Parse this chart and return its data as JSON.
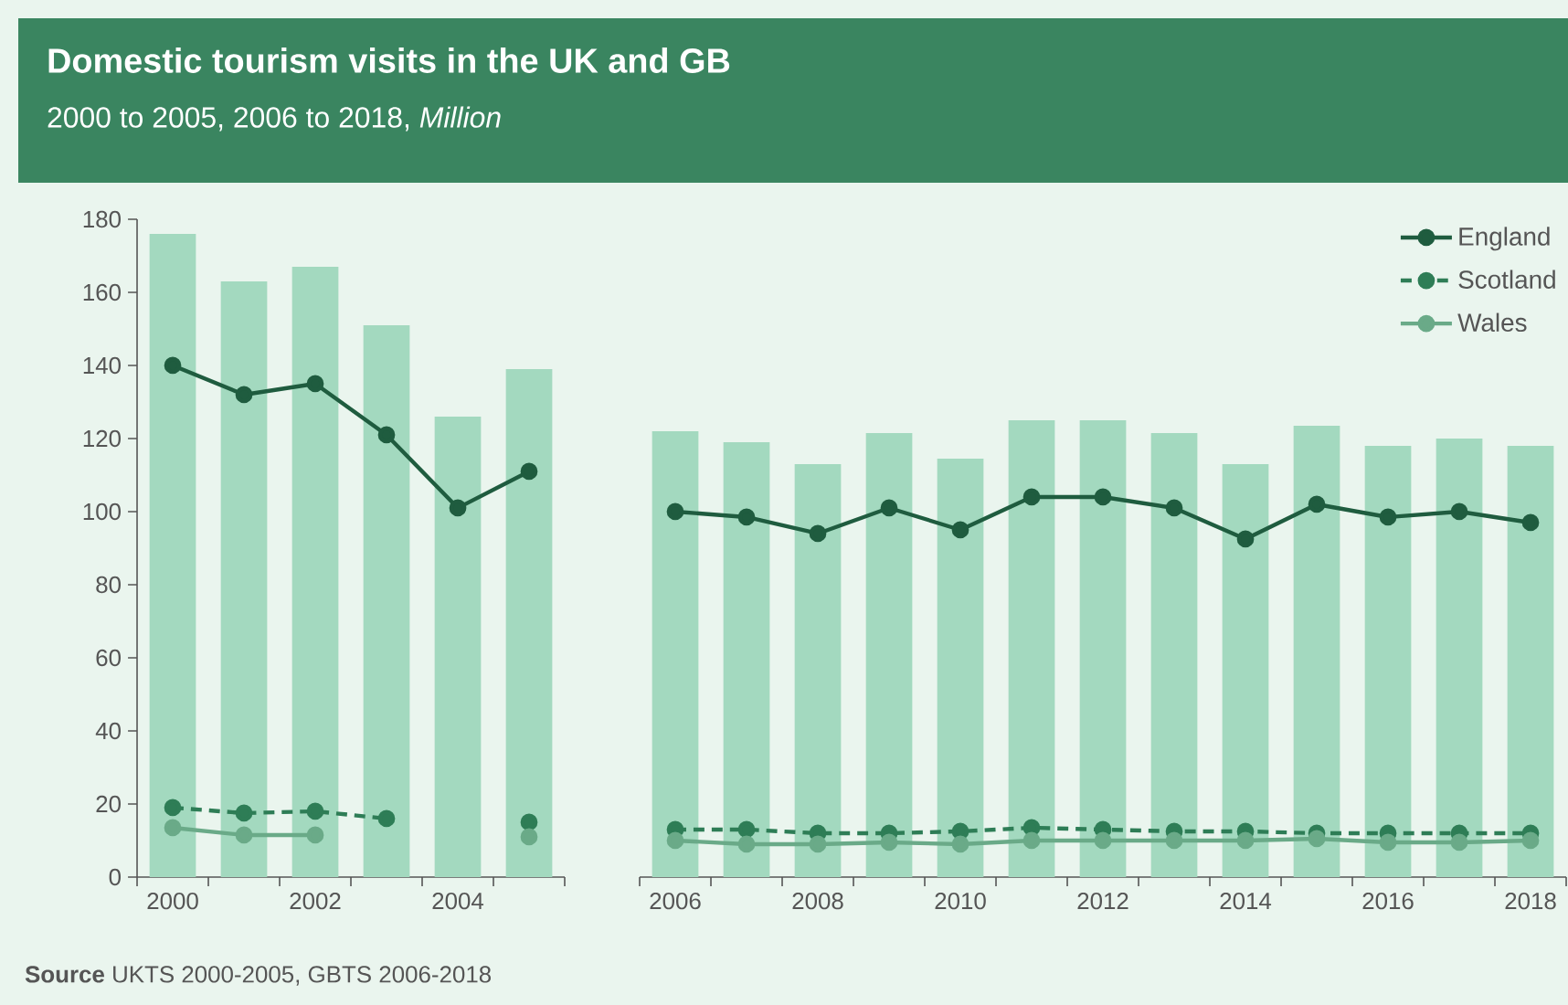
{
  "chart_data": [
    {
      "type": "bar",
      "title": "Domestic tourism visits in the UK and GB",
      "subtitle": "2000 to 2005, 2006 to 2018, *Million*",
      "annotations": [
        "**Source** UKTS 2000-2005, GBTS 2006-2018"
      ],
      "categories": [
        "2000",
        null,
        "2002",
        null,
        "2004",
        null
      ],
      "ylim": [
        0,
        180
      ],
      "yticks": [
        0,
        20,
        40,
        60,
        80,
        100,
        120,
        140,
        160,
        180
      ],
      "series": [
        {
          "color": "#a3d9bf",
          "values": [
            176,
            163,
            167,
            151,
            126,
            139
          ]
        },
        {
          "type": "line",
          "color": "#1f5c3f",
          "marker": "circle",
          "line_style": "solid",
          "values": [
            140,
            132,
            135,
            121,
            101,
            111
          ]
        },
        {
          "type": "line",
          "color": "#2e7d56",
          "marker": "circle",
          "line_style": "dashed",
          "values": [
            19,
            17.5,
            18,
            16,
            null,
            15
          ]
        },
        {
          "type": "line",
          "color": "#6aaa88",
          "marker": "circle",
          "line_style": "solid",
          "values": [
            13.5,
            11.5,
            11.5,
            null,
            null,
            11
          ]
        }
      ]
    },
    {
      "type": "bar",
      "categories": [
        "2006",
        null,
        "2008",
        null,
        "2010",
        null,
        "2012",
        null,
        "2014",
        null,
        "2016",
        null,
        "2018"
      ],
      "ylim": [
        0,
        180
      ],
      "tick_labels": "x",
      "legend": "top right",
      "series": [
        {
          "color": "#a3d9bf",
          "values": [
            122,
            119,
            113,
            121.5,
            114.5,
            125,
            125,
            121.5,
            113,
            123.5,
            118,
            120,
            118
          ]
        },
        {
          "type": "line",
          "name": "England",
          "color": "#1f5c3f",
          "marker": "circle",
          "line_style": "solid",
          "values": [
            100,
            98.5,
            94,
            101,
            95,
            104,
            104,
            101,
            92.5,
            102,
            98.5,
            100,
            97
          ]
        },
        {
          "type": "line",
          "name": "Scotland",
          "color": "#2e7d56",
          "marker": "circle",
          "line_style": "dashed",
          "values": [
            13,
            13,
            12,
            12,
            12.5,
            13.5,
            13,
            12.5,
            12.5,
            12,
            12,
            12,
            12
          ]
        },
        {
          "type": "line",
          "name": "Wales",
          "color": "#6aaa88",
          "marker": "circle",
          "line_style": "solid",
          "values": [
            10,
            9,
            9,
            9.5,
            9,
            10,
            10,
            10,
            10,
            10.5,
            9.5,
            9.5,
            10
          ]
        }
      ]
    }
  ]
}
